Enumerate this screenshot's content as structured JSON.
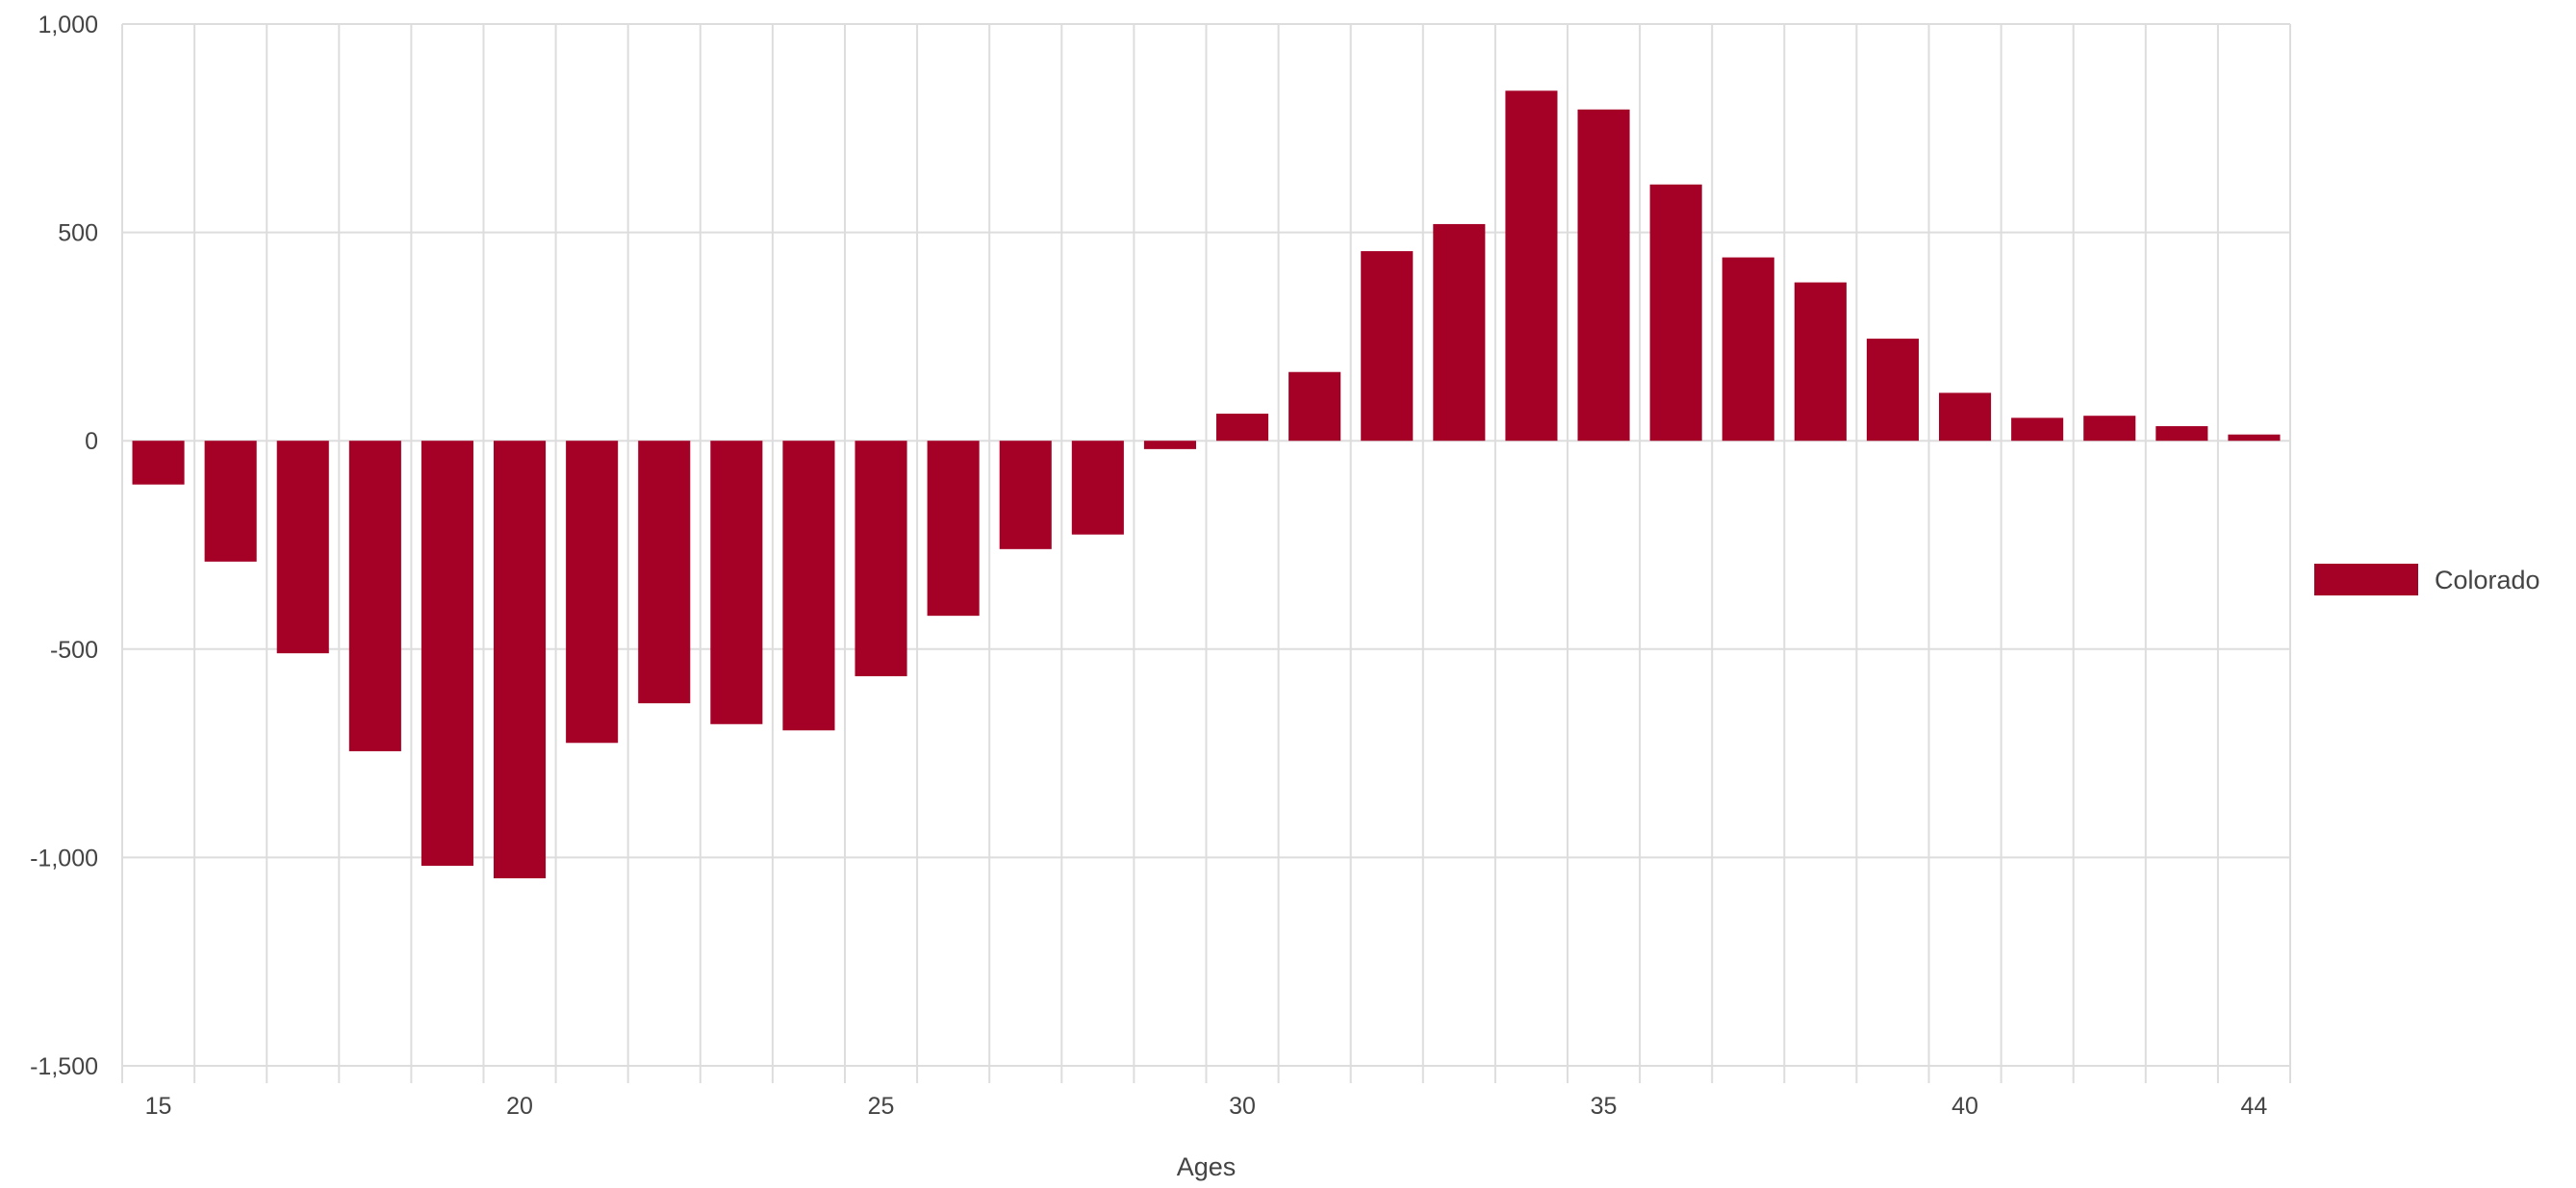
{
  "chart_data": {
    "type": "bar",
    "xlabel": "Ages",
    "ylabel": "",
    "ylim": [
      -1500,
      1000
    ],
    "yticks": [
      1000,
      500,
      0,
      -500,
      -1000,
      -1500
    ],
    "ytick_labels": [
      "1,000",
      "500",
      "0",
      "-500",
      "-1,000",
      "-1,500"
    ],
    "xticks_labeled": [
      15,
      20,
      25,
      30,
      35,
      40,
      44
    ],
    "categories": [
      15,
      16,
      17,
      18,
      19,
      20,
      21,
      22,
      23,
      24,
      25,
      26,
      27,
      28,
      29,
      30,
      31,
      32,
      33,
      34,
      35,
      36,
      37,
      38,
      39,
      40,
      41,
      42,
      43,
      44
    ],
    "series": [
      {
        "name": "Colorado",
        "color": "#a50026",
        "values": [
          -105,
          -290,
          -510,
          -745,
          -1020,
          -1050,
          -725,
          -630,
          -680,
          -695,
          -565,
          -420,
          -260,
          -225,
          -20,
          65,
          165,
          455,
          520,
          840,
          795,
          615,
          440,
          380,
          245,
          115,
          55,
          60,
          35,
          15
        ]
      }
    ],
    "grid": true,
    "legend_position": "right"
  }
}
